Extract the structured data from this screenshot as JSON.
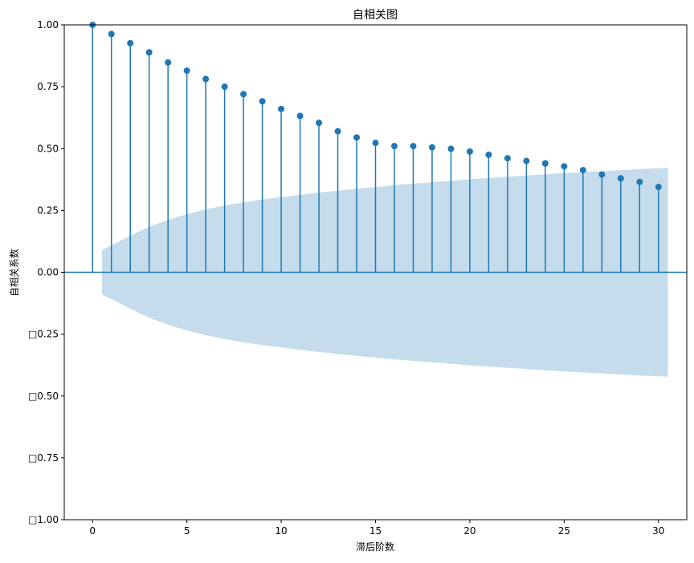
{
  "chart_data": {
    "type": "stem",
    "title": "自相关图",
    "xlabel": "滞后阶数",
    "ylabel": "自相关系数",
    "xlim": [
      -1.5,
      31.5
    ],
    "ylim": [
      -1.0,
      1.0
    ],
    "x_ticks": [
      0,
      5,
      10,
      15,
      20,
      25,
      30
    ],
    "x_tick_labels": [
      "0",
      "5",
      "10",
      "15",
      "20",
      "25",
      "30"
    ],
    "y_ticks": [
      1.0,
      0.75,
      0.5,
      0.25,
      0.0,
      -0.25,
      -0.5,
      -0.75,
      -1.0
    ],
    "y_tick_labels": [
      "1.00",
      "0.75",
      "0.50",
      "0.25",
      "0.00",
      "□0.25",
      "□0.50",
      "□0.75",
      "□1.00"
    ],
    "grid": false,
    "series": [
      {
        "lags": [
          0,
          1,
          2,
          3,
          4,
          5,
          6,
          7,
          8,
          9,
          10,
          11,
          12,
          13,
          14,
          15,
          16,
          17,
          18,
          19,
          20,
          21,
          22,
          23,
          24,
          25,
          26,
          27,
          28,
          29,
          30
        ],
        "values": [
          1.0,
          0.963,
          0.926,
          0.889,
          0.848,
          0.815,
          0.781,
          0.75,
          0.72,
          0.691,
          0.66,
          0.632,
          0.604,
          0.57,
          0.545,
          0.523,
          0.51,
          0.51,
          0.505,
          0.499,
          0.488,
          0.475,
          0.461,
          0.45,
          0.44,
          0.428,
          0.413,
          0.395,
          0.38,
          0.365,
          0.345
        ]
      }
    ],
    "confidence_band": {
      "lags": [
        0.5,
        1,
        2,
        3,
        4,
        5,
        6,
        7,
        8,
        9,
        10,
        11,
        12,
        13,
        14,
        15,
        16,
        17,
        18,
        19,
        20,
        21,
        22,
        23,
        24,
        25,
        26,
        27,
        28,
        29,
        30,
        30.5
      ],
      "upper": [
        0.09,
        0.108,
        0.148,
        0.184,
        0.212,
        0.235,
        0.254,
        0.27,
        0.283,
        0.294,
        0.304,
        0.313,
        0.322,
        0.33,
        0.338,
        0.345,
        0.352,
        0.358,
        0.364,
        0.37,
        0.376,
        0.381,
        0.386,
        0.391,
        0.396,
        0.401,
        0.405,
        0.409,
        0.413,
        0.417,
        0.42,
        0.422
      ]
    },
    "colors": {
      "stem": "#1f77b4",
      "band": "#c5dcec",
      "axes": "#000000"
    }
  }
}
